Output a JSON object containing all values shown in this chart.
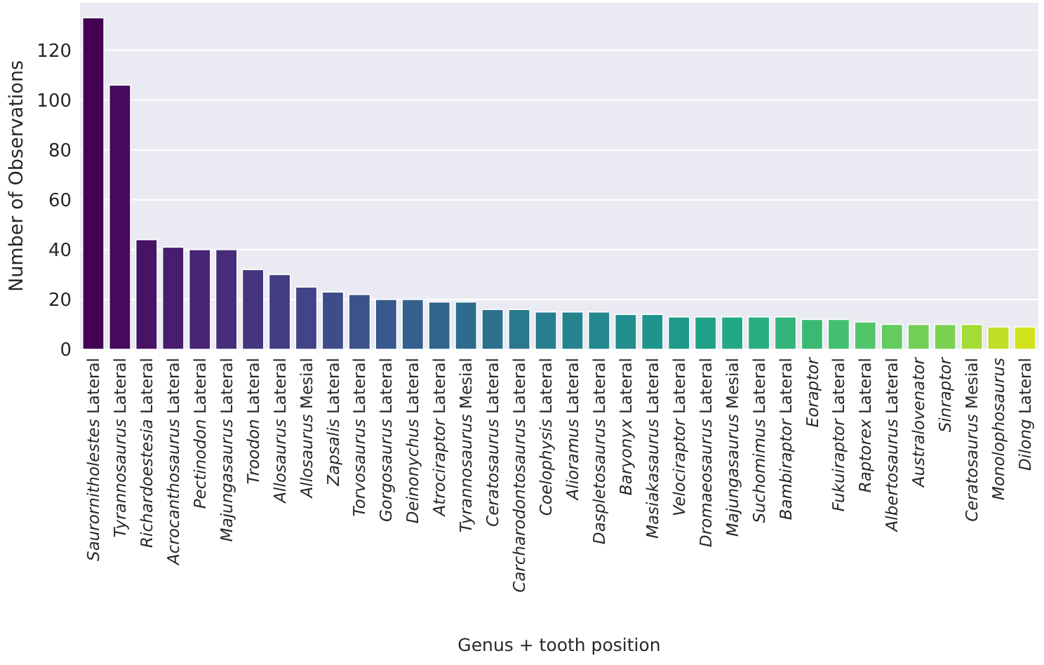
{
  "chart_data": {
    "type": "bar",
    "xlabel": "Genus + tooth position",
    "ylabel": "Number of Observations",
    "categories": [
      "Saurornitholestes Lateral",
      "Tyrannosaurus Lateral",
      "Richardoestesia Lateral",
      "Acrocanthosaurus Lateral",
      "Pectinodon Lateral",
      "Majungasaurus Lateral",
      "Troodon Lateral",
      "Allosaurus Lateral",
      "Allosaurus Mesial",
      "Zapsalis Lateral",
      "Torvosaurus Lateral",
      "Gorgosaurus Lateral",
      "Deinonychus Lateral",
      "Atrociraptor Lateral",
      "Tyrannosaurus Mesial",
      "Ceratosaurus Lateral",
      "Carcharodontosaurus Lateral",
      "Coelophysis Lateral",
      "Alioramus Lateral",
      "Daspletosaurus Lateral",
      "Baryonyx Lateral",
      "Masiakasaurus Lateral",
      "Velociraptor Lateral",
      "Dromaeosaurus Lateral",
      "Majungasaurus Mesial",
      "Suchomimus Lateral",
      "Bambiraptor Lateral",
      "Eoraptor",
      "Fukuiraptor Lateral",
      "Raptorex Lateral",
      "Albertosaurus Lateral",
      "Australovenator",
      "Sinraptor",
      "Ceratosaurus Mesial",
      "Monolophosaurus",
      "Dilong Lateral"
    ],
    "values": [
      133,
      106,
      44,
      41,
      40,
      40,
      32,
      30,
      25,
      23,
      22,
      20,
      20,
      19,
      19,
      16,
      16,
      15,
      15,
      15,
      14,
      14,
      13,
      13,
      13,
      13,
      13,
      12,
      12,
      11,
      10,
      10,
      10,
      10,
      9,
      9
    ],
    "colors": [
      "#440154",
      "#46095c",
      "#471365",
      "#481c6e",
      "#482475",
      "#472c7a",
      "#45347f",
      "#433c84",
      "#414487",
      "#3e4c8a",
      "#3b528b",
      "#38598c",
      "#355f8d",
      "#32658e",
      "#2f6b8e",
      "#2c718e",
      "#2a788e",
      "#277e8e",
      "#25838e",
      "#23898e",
      "#218e8d",
      "#1f948c",
      "#1f9a8a",
      "#20a086",
      "#22a884",
      "#2aae80",
      "#33b47a",
      "#3bb974",
      "#44bf70",
      "#52c569",
      "#63cb5f",
      "#72cf56",
      "#7ad151",
      "#a5db36",
      "#bede27",
      "#d2e21b"
    ],
    "ylim": [
      0,
      139
    ],
    "yticks": [
      0,
      20,
      40,
      60,
      80,
      100,
      120
    ],
    "grid": "y"
  }
}
